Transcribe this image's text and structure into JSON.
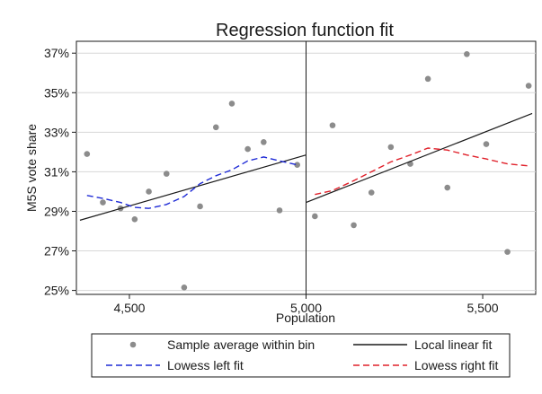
{
  "chart_data": {
    "type": "scatter",
    "title": "Regression function fit",
    "xlabel": "Population",
    "ylabel": "M5S vote share",
    "xlim": [
      4350,
      5650
    ],
    "ylim": [
      24.8,
      37.6
    ],
    "xticks": [
      4500,
      5000,
      5500
    ],
    "xtick_labels": [
      "4,500",
      "5,000",
      "5,500"
    ],
    "yticks": [
      25,
      27,
      29,
      31,
      33,
      35,
      37
    ],
    "ytick_labels": [
      "25%",
      "27%",
      "29%",
      "31%",
      "33%",
      "35%",
      "37%"
    ],
    "cutoff": 5000,
    "grid": true,
    "legend_position": "bottom",
    "series": [
      {
        "name": "Sample average within bin",
        "kind": "points",
        "color": "#8c8c8c",
        "x": [
          4380,
          4425,
          4475,
          4515,
          4555,
          4605,
          4655,
          4700,
          4745,
          4790,
          4835,
          4880,
          4925,
          4975,
          5025,
          5075,
          5135,
          5185,
          5240,
          5295,
          5345,
          5400,
          5455,
          5510,
          5570,
          5630
        ],
        "y": [
          31.9,
          29.45,
          29.15,
          28.6,
          30.0,
          30.9,
          25.15,
          29.25,
          33.25,
          34.45,
          32.15,
          32.5,
          29.05,
          31.35,
          28.75,
          33.35,
          28.3,
          29.95,
          32.25,
          31.4,
          35.7,
          30.2,
          36.95,
          32.4,
          26.95,
          35.35
        ]
      },
      {
        "name": "Local linear fit",
        "kind": "line",
        "color": "#1a1a1a",
        "segments": [
          {
            "x": [
              4360,
              5000
            ],
            "y": [
              28.55,
              31.85
            ]
          },
          {
            "x": [
              5000,
              5640
            ],
            "y": [
              29.45,
              33.95
            ]
          }
        ]
      },
      {
        "name": "Lowess left fit",
        "kind": "dashed",
        "color": "#1f2bd6",
        "x": [
          4380,
          4425,
          4475,
          4515,
          4555,
          4605,
          4655,
          4700,
          4745,
          4790,
          4835,
          4880,
          4925,
          4975
        ],
        "y": [
          29.8,
          29.65,
          29.45,
          29.2,
          29.15,
          29.35,
          29.75,
          30.4,
          30.8,
          31.1,
          31.55,
          31.75,
          31.55,
          31.35
        ]
      },
      {
        "name": "Lowess right fit",
        "kind": "dashed",
        "color": "#e0202a",
        "x": [
          5025,
          5075,
          5135,
          5185,
          5240,
          5295,
          5345,
          5400,
          5455,
          5510,
          5570,
          5630
        ],
        "y": [
          29.85,
          30.05,
          30.55,
          31.0,
          31.5,
          31.85,
          32.2,
          32.1,
          31.85,
          31.65,
          31.4,
          31.3
        ]
      }
    ]
  }
}
